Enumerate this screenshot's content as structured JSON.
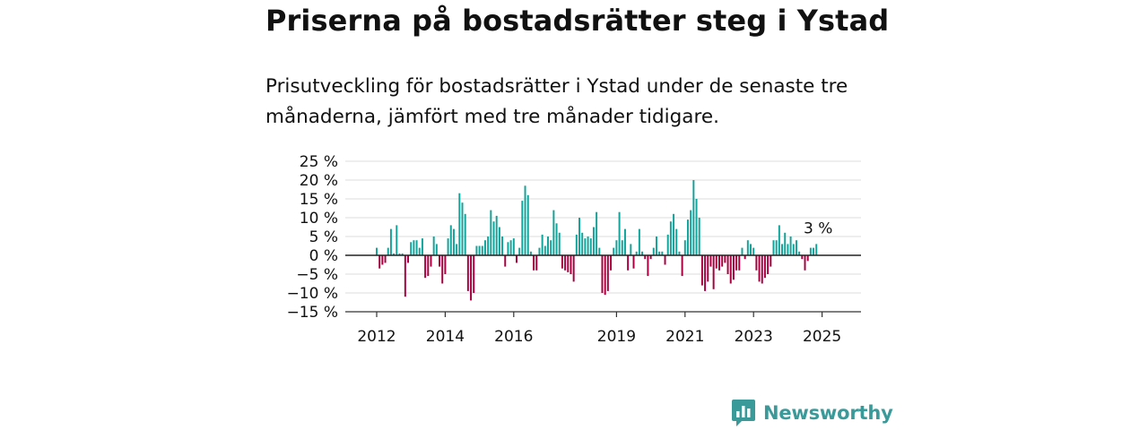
{
  "title": "Priserna på bostadsrätter steg i Ystad",
  "subtitle": "Prisutveckling för bostadsrätter i Ystad under de senaste tre månaderna, jämfört med tre månader tidigare.",
  "brand": {
    "name": "Newsworthy",
    "logo_icon": "bar-chart-speech-bubble-icon"
  },
  "colors": {
    "positive": "#12a39a",
    "negative": "#a8003f",
    "grid": "#dddddd",
    "axis": "#333333",
    "brand": "#3a9a9a"
  },
  "chart_data": {
    "type": "bar",
    "title": "Priserna på bostadsrätter steg i Ystad",
    "ylim": [
      -15,
      25
    ],
    "y_ticks": [
      -15,
      -10,
      -5,
      0,
      5,
      10,
      15,
      20,
      25
    ],
    "y_tick_labels": [
      "−15 %",
      "−10 %",
      "−5 %",
      "0 %",
      "5 %",
      "10 %",
      "15 %",
      "20 %",
      "25 %"
    ],
    "x_ticks": [
      2012,
      2014,
      2016,
      2019,
      2021,
      2023,
      2025
    ],
    "x_tick_labels": [
      "2012",
      "2014",
      "2016",
      "2019",
      "2021",
      "2023",
      "2025"
    ],
    "x_start": 2012,
    "months_per_bar": 1,
    "grid": true,
    "annotation": {
      "text": "3 %",
      "target": "last"
    },
    "values": [
      2,
      -3.5,
      -2.5,
      -2,
      2,
      7,
      0.5,
      8,
      0.5,
      0.5,
      -11,
      -2,
      3.5,
      4,
      4,
      2,
      4.5,
      -6,
      -5.5,
      -3,
      5,
      3,
      -3,
      -7.5,
      -5,
      4.5,
      8,
      7,
      3,
      16.5,
      14,
      11,
      -9.5,
      -12,
      -10,
      2.5,
      2.5,
      2.5,
      4,
      5,
      12,
      9,
      10.5,
      7.5,
      5,
      -3,
      3.5,
      4,
      4.5,
      -2,
      2,
      14.5,
      18.5,
      16,
      1,
      -4,
      -4,
      2,
      5.5,
      2.5,
      5,
      4,
      12,
      8.5,
      6,
      -3.5,
      -4,
      -4.5,
      -5,
      -7,
      5.5,
      10,
      6,
      4.5,
      5,
      4.5,
      7.5,
      11.5,
      2,
      -10,
      -10.5,
      -9.5,
      -4,
      2,
      4,
      11.5,
      4,
      7,
      -4,
      3,
      -3.5,
      1,
      7,
      1,
      -1,
      -5.5,
      -1,
      2,
      5,
      1,
      1,
      -2.5,
      5.5,
      9,
      11,
      7,
      1,
      -5.5,
      4,
      9.5,
      12,
      20,
      15,
      10,
      -8,
      -9.5,
      -7,
      -3,
      -9,
      -3.5,
      -4,
      -3,
      -2,
      -5,
      -7.5,
      -6.5,
      -4,
      -4,
      2,
      -1,
      4,
      3,
      2,
      -4,
      -7,
      -7.5,
      -6,
      -5,
      -3,
      4,
      4,
      8,
      3,
      6,
      3,
      5,
      3,
      4,
      1,
      -1,
      -4,
      -1.5,
      2,
      2,
      3
    ]
  }
}
